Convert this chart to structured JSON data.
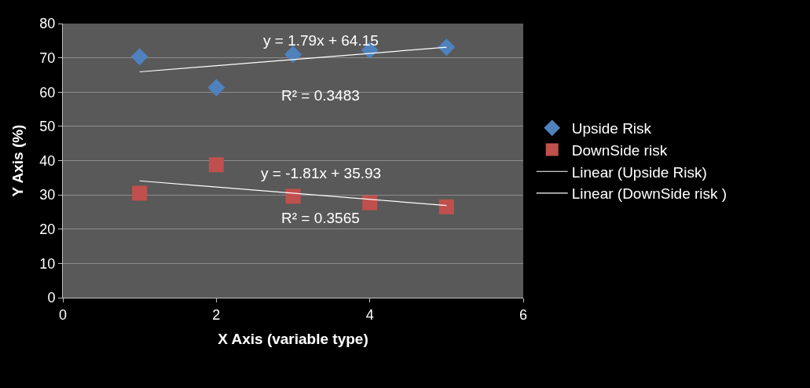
{
  "chart_data": {
    "type": "scatter",
    "xlabel": "X Axis (variable type)",
    "ylabel": "Y Axis (%)",
    "xlim": [
      0,
      6
    ],
    "xticks": [
      0,
      2,
      4,
      6
    ],
    "ylim": [
      0,
      80
    ],
    "yticks": [
      0,
      10,
      20,
      30,
      40,
      50,
      60,
      70,
      80
    ],
    "grid": "y",
    "legend": "right",
    "series": [
      {
        "name": "Upside Risk",
        "marker": "diamond",
        "color": "#4f81bd",
        "x": [
          1,
          2,
          3,
          4,
          5
        ],
        "values": [
          70.3,
          61.3,
          71,
          72.2,
          73.1
        ]
      },
      {
        "name": "DownSide risk",
        "marker": "square",
        "color": "#c0504d",
        "x": [
          1,
          2,
          3,
          4,
          5
        ],
        "values": [
          30.5,
          38.8,
          29.6,
          27.7,
          26.5
        ]
      },
      {
        "name": "Linear (Upside Risk)",
        "type": "line",
        "marker": "none",
        "line_style": "solid",
        "color": "#ffffff",
        "x": [
          1,
          5
        ],
        "values": [
          65.9,
          73.1
        ]
      },
      {
        "name": "Linear (DownSide risk )",
        "type": "line",
        "marker": "none",
        "line_style": "solid",
        "color": "#ffffff",
        "x": [
          1,
          5
        ],
        "values": [
          34.1,
          26.9
        ]
      }
    ],
    "annotations": [
      "y = 1.79x + 64.15",
      "R² = 0.3483",
      "y = -1.81x + 35.93",
      "R² = 0.3565"
    ]
  }
}
